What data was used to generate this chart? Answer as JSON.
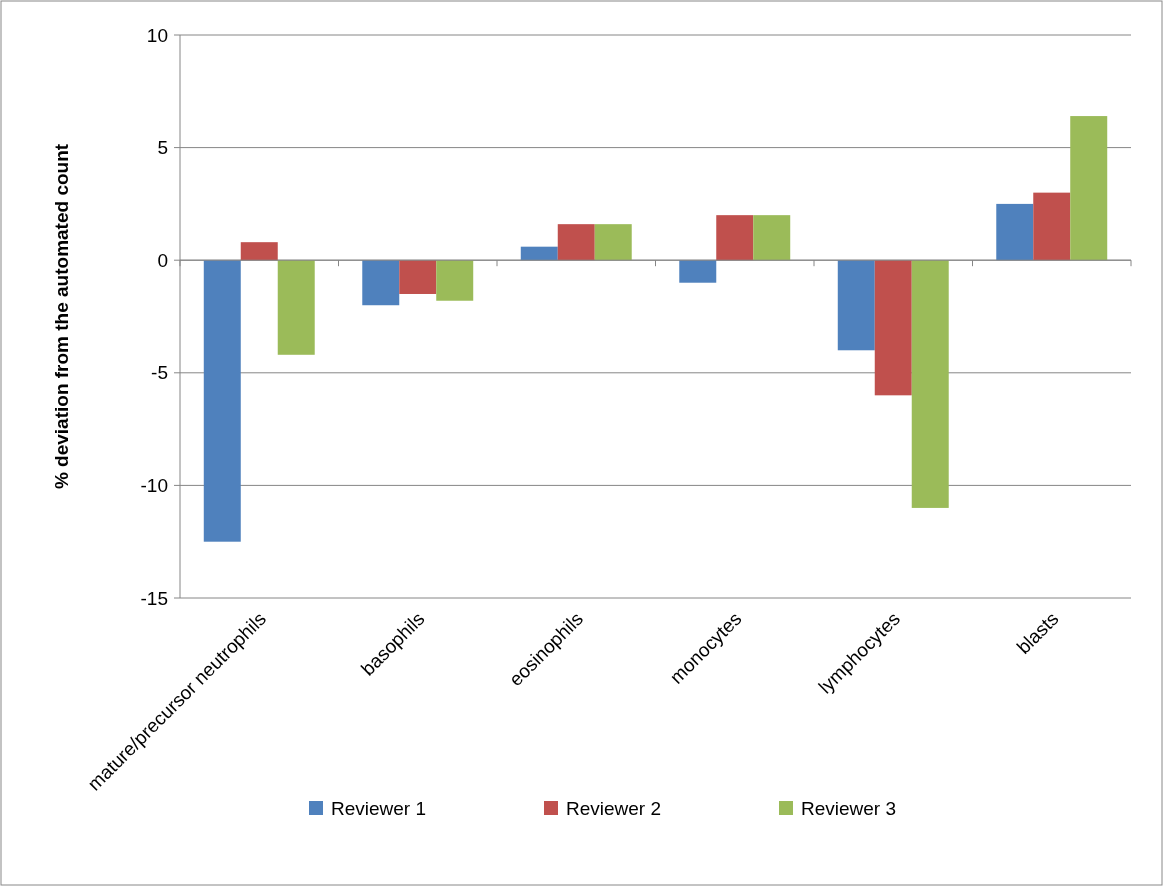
{
  "chart_data": {
    "type": "bar",
    "ylabel": "% deviation from the automated count",
    "categories": [
      "mature/precursor neutrophils",
      "basophils",
      "eosinophils",
      "monocytes",
      "lymphocytes",
      "blasts"
    ],
    "series": [
      {
        "name": "Reviewer 1",
        "color": "#4f81bd",
        "values": [
          -12.5,
          -2.0,
          0.6,
          -1.0,
          -4.0,
          2.5
        ]
      },
      {
        "name": "Reviewer 2",
        "color": "#c0504d",
        "values": [
          0.8,
          -1.5,
          1.6,
          2.0,
          -6.0,
          3.0
        ]
      },
      {
        "name": "Reviewer 3",
        "color": "#9bbb59",
        "values": [
          -4.2,
          -1.8,
          1.6,
          2.0,
          -11.0,
          6.4
        ]
      }
    ],
    "ylim": [
      -15,
      10
    ],
    "yticks": [
      -15,
      -10,
      -5,
      0,
      5,
      10
    ],
    "grid": "y",
    "legend": "bottom"
  }
}
